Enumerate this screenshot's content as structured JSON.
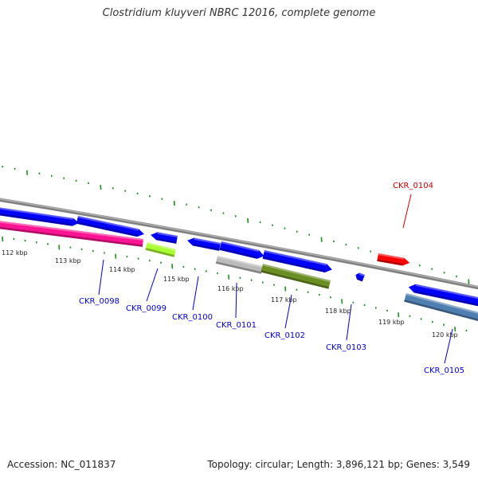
{
  "title": "Clostridium kluyveri NBRC 12016, complete genome",
  "footer": {
    "accession": "Accession: NC_011837",
    "stats": "Topology: circular; Length: 3,896,121 bp; Genes: 3,549"
  },
  "ticks": [
    {
      "label": "112 kbp"
    },
    {
      "label": "113 kbp"
    },
    {
      "label": "114 kbp"
    },
    {
      "label": "115 kbp"
    },
    {
      "label": "116 kbp"
    },
    {
      "label": "117 kbp"
    },
    {
      "label": "118 kbp"
    },
    {
      "label": "119 kbp"
    },
    {
      "label": "120 kbp"
    }
  ],
  "genes": [
    {
      "id": "CKR_0098",
      "color": "#0000cc"
    },
    {
      "id": "CKR_0099",
      "color": "#0000cc"
    },
    {
      "id": "CKR_0100",
      "color": "#0000cc"
    },
    {
      "id": "CKR_0101",
      "color": "#0000cc"
    },
    {
      "id": "CKR_0102",
      "color": "#0000cc"
    },
    {
      "id": "CKR_0103",
      "color": "#0000cc"
    },
    {
      "id": "CKR_0104",
      "color": "#cc0000"
    },
    {
      "id": "CKR_0105",
      "color": "#0000cc"
    }
  ],
  "feature_colors": {
    "cds": "#0000ff",
    "magenta": "#ff1493",
    "lime": "#aaff33",
    "gray": "#bbbbbb",
    "olive": "#6b8e23",
    "red": "#ff0000",
    "steel": "#4f7fb0",
    "backbone": "#808080",
    "tick": "#228b22"
  }
}
